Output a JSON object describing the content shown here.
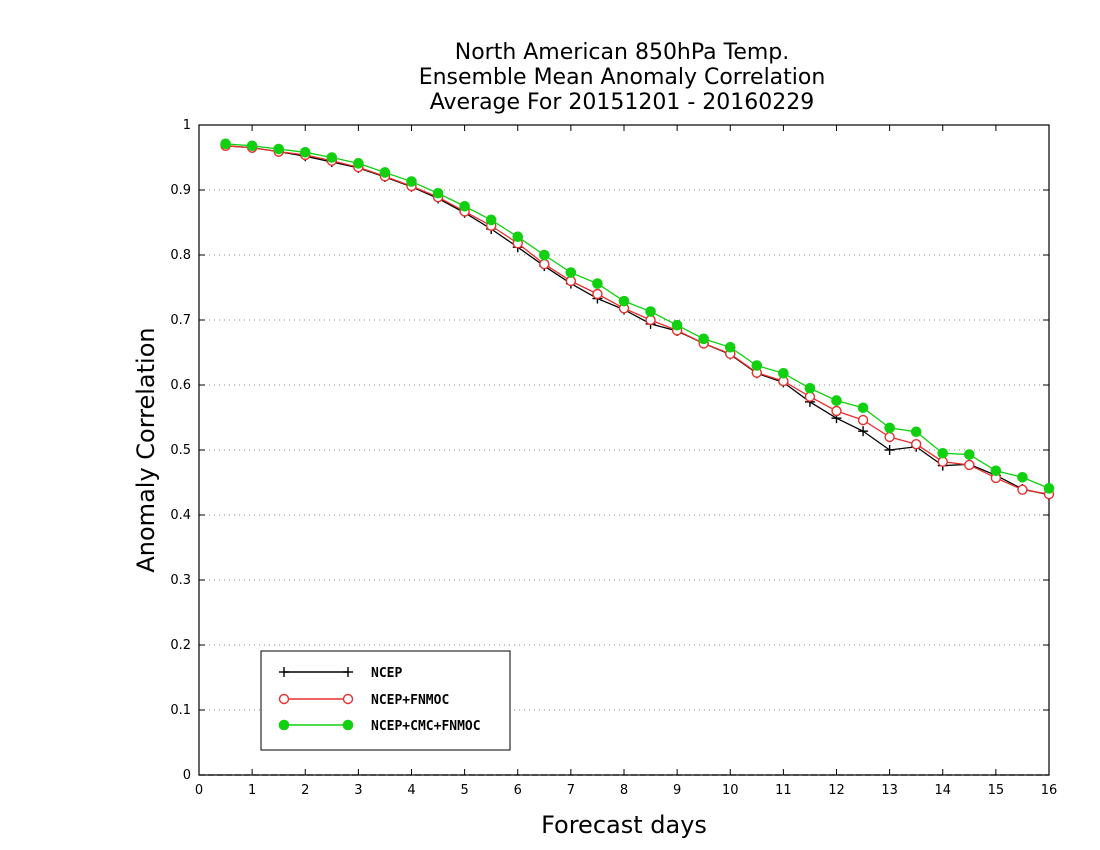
{
  "chart_data": {
    "type": "line",
    "title_lines": [
      "North American 850hPa Temp.",
      "Ensemble Mean Anomaly Correlation",
      "Average For 20151201 - 20160229"
    ],
    "xlabel": "Forecast days",
    "ylabel": "Anomaly Correlation",
    "xlim": [
      0,
      16
    ],
    "ylim": [
      0,
      1
    ],
    "x_ticks": [
      0,
      1,
      2,
      3,
      4,
      5,
      6,
      7,
      8,
      9,
      10,
      11,
      12,
      13,
      14,
      15,
      16
    ],
    "y_ticks": [
      0,
      0.1,
      0.2,
      0.3,
      0.4,
      0.5,
      0.6,
      0.7,
      0.8,
      0.9,
      1
    ],
    "y_tick_labels": [
      "0",
      "0.1",
      "0.2",
      "0.3",
      "0.4",
      "0.5",
      "0.6",
      "0.7",
      "0.8",
      "0.9",
      "1"
    ],
    "grid": "horizontal dotted",
    "legend_position": "bottom-left",
    "x": [
      0.5,
      1,
      1.5,
      2,
      2.5,
      3,
      3.5,
      4,
      4.5,
      5,
      5.5,
      6,
      6.5,
      7,
      7.5,
      8,
      8.5,
      9,
      9.5,
      10,
      10.5,
      11,
      11.5,
      12,
      12.5,
      13,
      13.5,
      14,
      14.5,
      15,
      15.5,
      16
    ],
    "series": [
      {
        "name": "NCEP",
        "color": "#000000",
        "marker": "plus",
        "values": [
          0.968,
          0.965,
          0.959,
          0.952,
          0.943,
          0.934,
          0.92,
          0.905,
          0.887,
          0.865,
          0.84,
          0.812,
          0.783,
          0.756,
          0.733,
          0.716,
          0.694,
          0.683,
          0.664,
          0.647,
          0.618,
          0.604,
          0.574,
          0.549,
          0.529,
          0.5,
          0.505,
          0.476,
          0.478,
          0.461,
          0.44,
          0.431
        ]
      },
      {
        "name": "NCEP+FNMOC",
        "color": "#e83030",
        "marker": "open-circle",
        "values": [
          0.968,
          0.965,
          0.959,
          0.954,
          0.945,
          0.935,
          0.921,
          0.906,
          0.889,
          0.867,
          0.845,
          0.818,
          0.786,
          0.76,
          0.74,
          0.718,
          0.7,
          0.684,
          0.664,
          0.648,
          0.619,
          0.606,
          0.582,
          0.56,
          0.546,
          0.52,
          0.509,
          0.482,
          0.477,
          0.457,
          0.439,
          0.432
        ]
      },
      {
        "name": "NCEP+CMC+FNMOC",
        "color": "#10d010",
        "marker": "filled-circle",
        "values": [
          0.971,
          0.968,
          0.963,
          0.958,
          0.95,
          0.941,
          0.927,
          0.913,
          0.895,
          0.875,
          0.854,
          0.828,
          0.8,
          0.773,
          0.756,
          0.729,
          0.713,
          0.692,
          0.671,
          0.658,
          0.63,
          0.618,
          0.595,
          0.576,
          0.565,
          0.534,
          0.528,
          0.495,
          0.493,
          0.468,
          0.458,
          0.441
        ]
      }
    ]
  }
}
